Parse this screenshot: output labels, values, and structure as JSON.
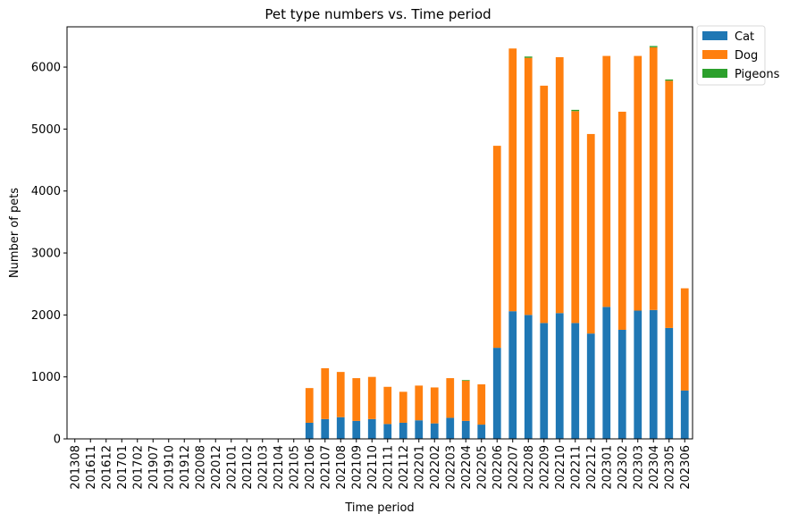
{
  "chart_data": {
    "type": "bar",
    "stacked": true,
    "title": "Pet type numbers vs. Time period",
    "xlabel": "Time period",
    "ylabel": "Number of pets",
    "ylim": [
      0,
      6650
    ],
    "yticks": [
      0,
      1000,
      2000,
      3000,
      4000,
      5000,
      6000
    ],
    "legend_position": "outside-top-right",
    "grid": false,
    "categories": [
      "201308",
      "201611",
      "201612",
      "201701",
      "201702",
      "201907",
      "201910",
      "201912",
      "202008",
      "202012",
      "202101",
      "202102",
      "202103",
      "202104",
      "202105",
      "202106",
      "202107",
      "202108",
      "202109",
      "202110",
      "202111",
      "202112",
      "202201",
      "202202",
      "202203",
      "202204",
      "202205",
      "202206",
      "202207",
      "202208",
      "202209",
      "202210",
      "202211",
      "202212",
      "202301",
      "202302",
      "202303",
      "202304",
      "202305",
      "202306"
    ],
    "series": [
      {
        "name": "Cat",
        "color": "#1f77b4",
        "values": [
          2,
          2,
          2,
          2,
          2,
          2,
          2,
          2,
          2,
          2,
          2,
          2,
          2,
          2,
          2,
          260,
          320,
          350,
          290,
          320,
          240,
          260,
          300,
          250,
          340,
          290,
          230,
          1470,
          2060,
          2000,
          1870,
          2030,
          1870,
          1700,
          2130,
          1760,
          2070,
          2080,
          1790,
          780
        ]
      },
      {
        "name": "Dog",
        "color": "#ff7f0e",
        "values": [
          0,
          0,
          0,
          0,
          0,
          0,
          0,
          0,
          0,
          0,
          0,
          0,
          0,
          0,
          0,
          560,
          820,
          730,
          690,
          680,
          600,
          500,
          560,
          580,
          640,
          650,
          650,
          3260,
          4240,
          4150,
          3830,
          4130,
          3420,
          3220,
          4050,
          3520,
          4110,
          4240,
          3990,
          1650
        ]
      },
      {
        "name": "Pigeons",
        "color": "#2ca02c",
        "values": [
          0,
          0,
          0,
          0,
          0,
          0,
          0,
          0,
          0,
          0,
          0,
          0,
          0,
          0,
          0,
          0,
          0,
          0,
          0,
          0,
          0,
          0,
          0,
          0,
          0,
          10,
          0,
          0,
          0,
          20,
          0,
          0,
          20,
          0,
          0,
          0,
          0,
          20,
          20,
          0
        ]
      }
    ]
  }
}
